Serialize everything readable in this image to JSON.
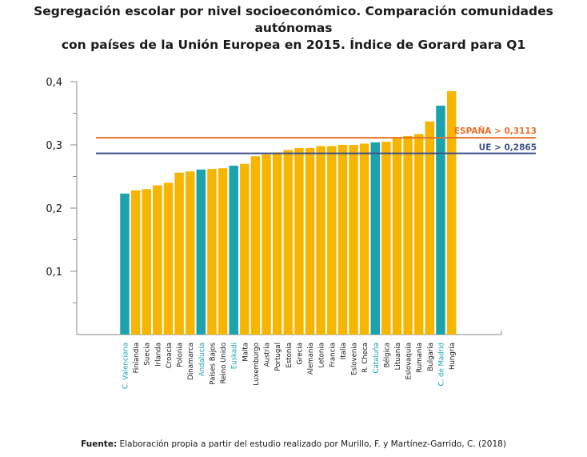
{
  "title_line1": "Segregación escolar por nivel socioeconómico. Comparación comunidades autónomas",
  "title_line2": "con países de la Unión Europea en 2015. Índice de Gorard para Q1",
  "source_label": "Fuente:",
  "source_text": "Elaboración propia a partir del estudio realizado por Murillo, F. y Martínez-Garrido, C. (2018)",
  "colors": {
    "highlight": "#1aa3ad",
    "default": "#f7b500",
    "espana_line": "#e8702a",
    "ue_line": "#3d4f8c",
    "axis": "#888888"
  },
  "chart_data": {
    "type": "bar",
    "title": "Segregación escolar por nivel socioeconómico. Comparación comunidades autónomas con países de la Unión Europea en 2015. Índice de Gorard para Q1",
    "xlabel": "",
    "ylabel": "",
    "ylim": [
      0,
      0.4
    ],
    "yticks": [
      "0,1",
      "0,2",
      "0,3",
      "0,4"
    ],
    "grid": false,
    "categories": [
      "C. Valenciana",
      "Finlandia",
      "Suecia",
      "Irlanda",
      "Croacia",
      "Polonia",
      "Dinamarca",
      "Andalucía",
      "Países Bajos",
      "Reino Unido",
      "Euskadi",
      "Malta",
      "Luxemburgo",
      "Austria",
      "Portugal",
      "Estonia",
      "Grecia",
      "Alemania",
      "Letonia",
      "Francia",
      "Italia",
      "Eslovenia",
      "R. Checa",
      "Cataluña",
      "Bélgica",
      "Lituania",
      "Eslovaquia",
      "Rumania",
      "Bulgaria",
      "C. de Madrid",
      "Hungría"
    ],
    "values": [
      0.223,
      0.228,
      0.23,
      0.236,
      0.24,
      0.256,
      0.258,
      0.261,
      0.262,
      0.263,
      0.267,
      0.27,
      0.282,
      0.285,
      0.288,
      0.292,
      0.295,
      0.295,
      0.298,
      0.298,
      0.3,
      0.3,
      0.302,
      0.304,
      0.305,
      0.312,
      0.314,
      0.317,
      0.337,
      0.362,
      0.385
    ],
    "highlighted": [
      "C. Valenciana",
      "Andalucía",
      "Euskadi",
      "Cataluña",
      "C. de Madrid"
    ],
    "reference_lines": [
      {
        "label": "ESPAÑA > 0,3113",
        "value": 0.3113,
        "color": "#e8702a"
      },
      {
        "label": "UE > 0,2865",
        "value": 0.2865,
        "color": "#3d4f8c"
      }
    ]
  }
}
